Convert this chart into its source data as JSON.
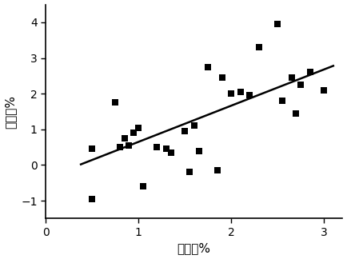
{
  "scatter_x": [
    0.5,
    0.5,
    0.75,
    0.8,
    0.85,
    0.9,
    0.95,
    1.0,
    1.05,
    1.2,
    1.3,
    1.35,
    1.5,
    1.55,
    1.6,
    1.65,
    1.75,
    1.85,
    1.9,
    2.0,
    2.1,
    2.2,
    2.3,
    2.5,
    2.55,
    2.65,
    2.7,
    2.75,
    2.85,
    3.0
  ],
  "scatter_y": [
    0.45,
    -0.95,
    1.75,
    0.5,
    0.75,
    0.55,
    0.9,
    1.05,
    -0.6,
    0.5,
    0.45,
    0.35,
    0.95,
    -0.2,
    1.1,
    0.4,
    2.75,
    -0.15,
    2.45,
    2.0,
    2.05,
    1.95,
    3.3,
    3.95,
    1.8,
    2.45,
    1.45,
    2.25,
    2.6,
    2.1
  ],
  "line_x": [
    0.38,
    3.1
  ],
  "line_y": [
    0.02,
    2.78
  ],
  "xlabel": "测量値%",
  "ylabel": "预测値%",
  "xlim": [
    0,
    3.2
  ],
  "ylim": [
    -1.5,
    4.5
  ],
  "xticks": [
    0,
    1,
    2,
    3
  ],
  "yticks": [
    -1,
    0,
    1,
    2,
    3,
    4
  ],
  "marker_color": "#000000",
  "line_color": "#000000",
  "bg_color": "#ffffff",
  "marker_size": 6,
  "line_width": 1.8,
  "tick_fontsize": 10,
  "label_fontsize": 11
}
